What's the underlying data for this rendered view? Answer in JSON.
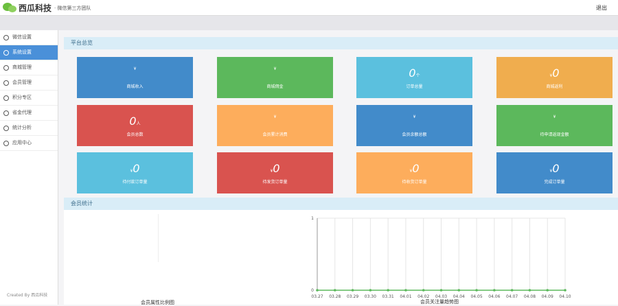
{
  "header": {
    "brand": "西瓜科技",
    "tagline": "· 微信第三方团队",
    "logout": "退出"
  },
  "sidebar": {
    "items": [
      "微信设置",
      "系统设置",
      "商城管理",
      "会员管理",
      "积分专区",
      "省金代理",
      "统计分析",
      "应用中心"
    ],
    "active": 1,
    "footer": "Created By 西瓜科技"
  },
  "overview": {
    "title": "平台总览",
    "tiles": [
      {
        "prefix": "¥",
        "label": "商城收入",
        "color": "#428bca"
      },
      {
        "prefix": "¥",
        "label": "商城佣金",
        "color": "#5cb85c"
      },
      {
        "value": "0",
        "unit": "个",
        "label": "订单总量",
        "color": "#5bc0de"
      },
      {
        "prefix": "¥",
        "value": "0",
        "label": "商城返利",
        "color": "#f0ad4e"
      },
      {
        "value": "0",
        "unit": "人",
        "label": "会员总数",
        "color": "#d9534f"
      },
      {
        "prefix": "¥",
        "label": "会员累计消费",
        "color": "#fdad5c"
      },
      {
        "prefix": "¥",
        "label": "会员余额总额",
        "color": "#428bca"
      },
      {
        "prefix": "¥",
        "label": "待申请返现金额",
        "color": "#5cb85c"
      },
      {
        "prefix": "¥",
        "value": "0",
        "label": "待付款订单量",
        "color": "#5bc0de"
      },
      {
        "prefix": "¥",
        "value": "0",
        "label": "待发货订单量",
        "color": "#d9534f"
      },
      {
        "prefix": "¥",
        "value": "0",
        "label": "待收货订单量",
        "color": "#fdad5c"
      },
      {
        "prefix": "¥",
        "value": "0",
        "label": "完成订单量",
        "color": "#428bca"
      }
    ]
  },
  "members": {
    "title": "会员统计",
    "pie_title": "会员属性比例图"
  },
  "chart_data": {
    "type": "line",
    "title": "会员关注量趋势图",
    "categories": [
      "03.27",
      "03.28",
      "03.29",
      "03.30",
      "03.31",
      "04.01",
      "04.02",
      "04.03",
      "04.04",
      "04.05",
      "04.06",
      "04.07",
      "04.08",
      "04.09",
      "04.10"
    ],
    "values": [
      0,
      0,
      0,
      0,
      0,
      0,
      0,
      0,
      0,
      0,
      0,
      0,
      0,
      0,
      0
    ],
    "color": "#5cb85c",
    "ylim": [
      0,
      1
    ],
    "yticks": [
      0,
      1
    ],
    "grid": true
  }
}
